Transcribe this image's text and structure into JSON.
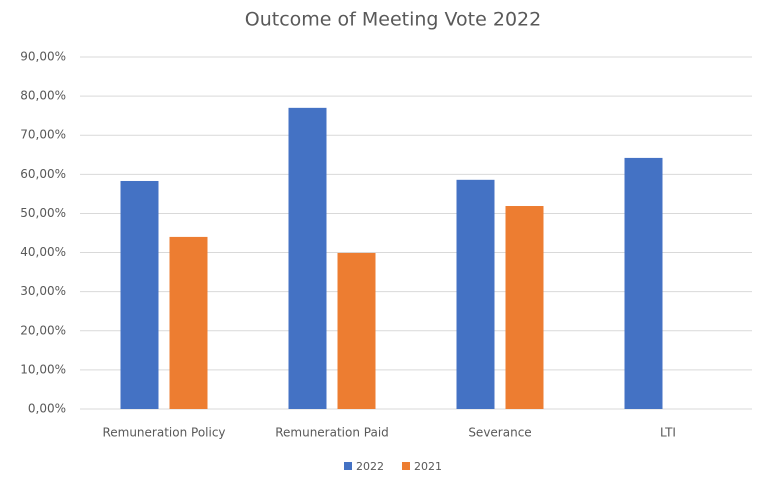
{
  "chart_data": {
    "type": "bar",
    "title": "Outcome of Meeting Vote 2022",
    "categories": [
      "Remuneration Policy",
      "Remuneration Paid",
      "Severance",
      "LTI"
    ],
    "series": [
      {
        "name": "2022",
        "color": "#4472c4",
        "values": [
          58.3,
          77.0,
          58.6,
          64.2
        ]
      },
      {
        "name": "2021",
        "color": "#ed7d31",
        "values": [
          44.0,
          39.9,
          51.9,
          null
        ]
      }
    ],
    "ylim": [
      0,
      90
    ],
    "yticks": [
      {
        "value": 0,
        "label": "0,00%"
      },
      {
        "value": 10,
        "label": "10,00%"
      },
      {
        "value": 20,
        "label": "20,00%"
      },
      {
        "value": 30,
        "label": "30,00%"
      },
      {
        "value": 40,
        "label": "40,00%"
      },
      {
        "value": 50,
        "label": "50,00%"
      },
      {
        "value": 60,
        "label": "60,00%"
      },
      {
        "value": 70,
        "label": "70,00%"
      },
      {
        "value": 80,
        "label": "80,00%"
      },
      {
        "value": 90,
        "label": "90,00%"
      }
    ],
    "grid": true,
    "legend": "bottom"
  }
}
